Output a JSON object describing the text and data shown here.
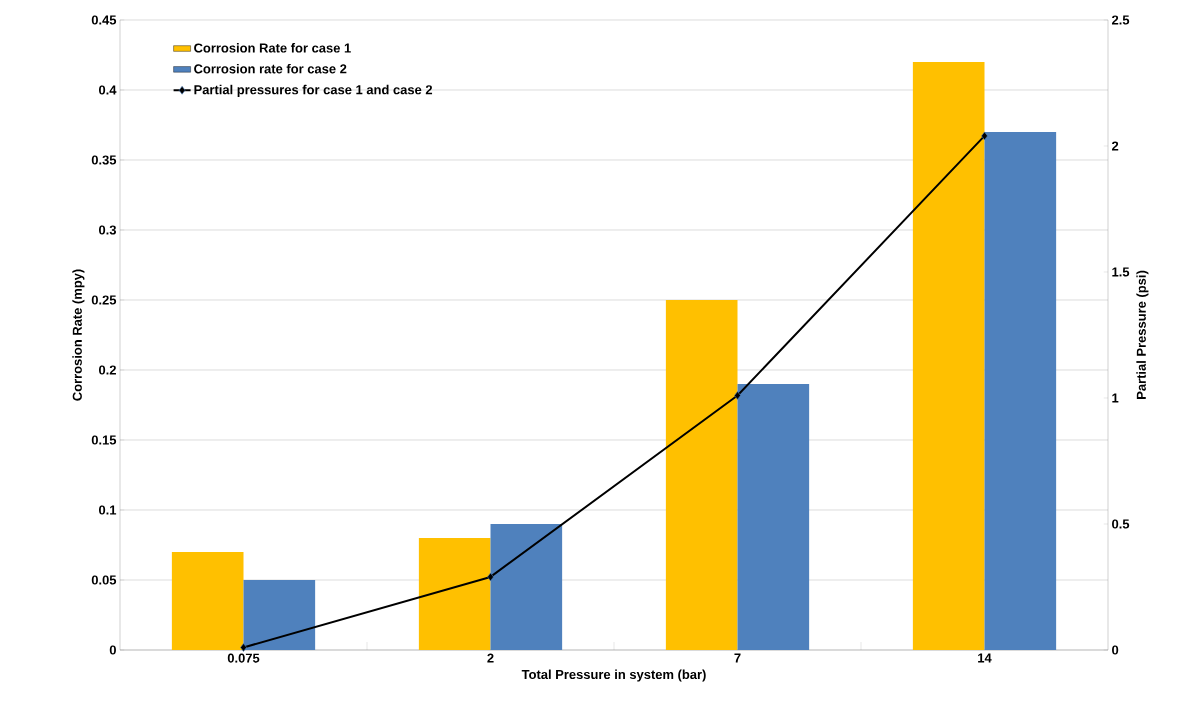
{
  "chart_data": {
    "type": "bar",
    "xlabel": "Total Pressure in system (bar)",
    "ylabel": "Corrosion Rate (mpy)",
    "y2label": "Partial Pressure (psi)",
    "categories": [
      "0.075",
      "2",
      "7",
      "14"
    ],
    "series": [
      {
        "name": "Corrosion Rate for case 1",
        "color": "#ffc000",
        "values": [
          0.07,
          0.08,
          0.25,
          0.42
        ]
      },
      {
        "name": "Corrosion rate for case 2",
        "color": "#4f81bd",
        "values": [
          0.05,
          0.09,
          0.19,
          0.37
        ]
      },
      {
        "name": "Partial pressures for case 1 and case 2",
        "color": "#000000",
        "type": "line",
        "axis": "y2",
        "marker": "diamond",
        "values": [
          0.01,
          0.29,
          1.01,
          2.04
        ]
      }
    ],
    "ylim": [
      0,
      0.45
    ],
    "yticks": [
      0,
      0.05,
      0.1,
      0.15,
      0.2,
      0.25,
      0.3,
      0.35,
      0.4,
      0.45
    ],
    "y2lim": [
      0,
      2.5
    ],
    "y2ticks": [
      0,
      0.5,
      1,
      1.5,
      2,
      2.5
    ],
    "grid": "y",
    "legend": "top left"
  }
}
